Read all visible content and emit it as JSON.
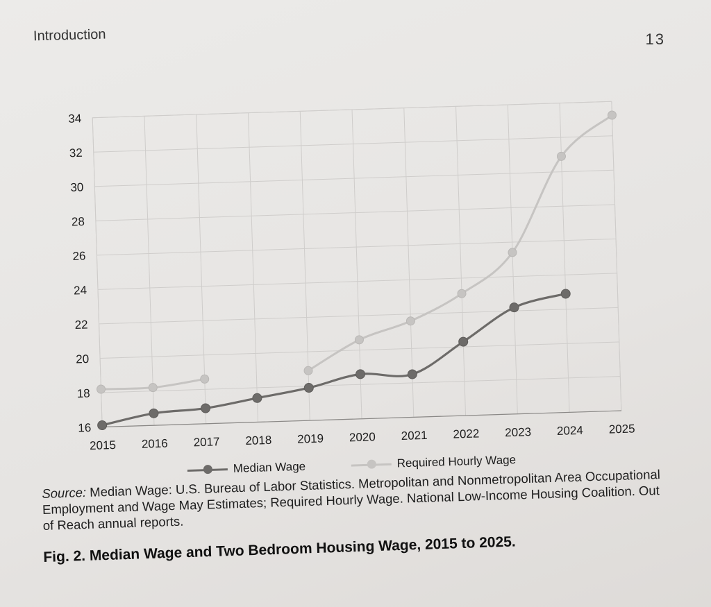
{
  "header": {
    "running_head": "Introduction",
    "page_number": "13"
  },
  "colors": {
    "median": "#6d6b69",
    "required": "#c6c4c2",
    "grid": "#cfcdcb",
    "axis": "#8a8886"
  },
  "chart_data": {
    "type": "line",
    "title": "",
    "xlabel": "",
    "ylabel": "",
    "x": [
      "2015",
      "2016",
      "2017",
      "2018",
      "2019",
      "2020",
      "2021",
      "2022",
      "2023",
      "2024",
      "2025"
    ],
    "ylim": [
      16,
      34
    ],
    "yticks": [
      "16",
      "18",
      "20",
      "22",
      "24",
      "26",
      "28",
      "30",
      "32",
      "34"
    ],
    "grid": true,
    "legend_position": "bottom",
    "series": [
      {
        "name": "Median Wage",
        "color": "#6d6b69",
        "values": [
          16.1,
          16.7,
          16.9,
          17.4,
          17.9,
          18.6,
          18.5,
          20.3,
          22.2,
          22.9,
          null
        ]
      },
      {
        "name": "Required Hourly Wage",
        "color": "#c6c4c2",
        "values": [
          18.2,
          18.2,
          18.6,
          null,
          18.9,
          20.6,
          21.6,
          23.1,
          25.4,
          30.9,
          33.2
        ]
      }
    ]
  },
  "source": {
    "label": "Source:",
    "text": " Median Wage: U.S. Bureau of Labor Statistics. Metropolitan and Nonmetropolitan Area Occupational Employment and Wage May Estimates; Required Hourly Wage. National Low-Income Housing Coalition. Out of Reach annual reports."
  },
  "caption": "Fig. 2.  Median Wage and Two Bedroom Housing Wage, 2015 to 2025."
}
